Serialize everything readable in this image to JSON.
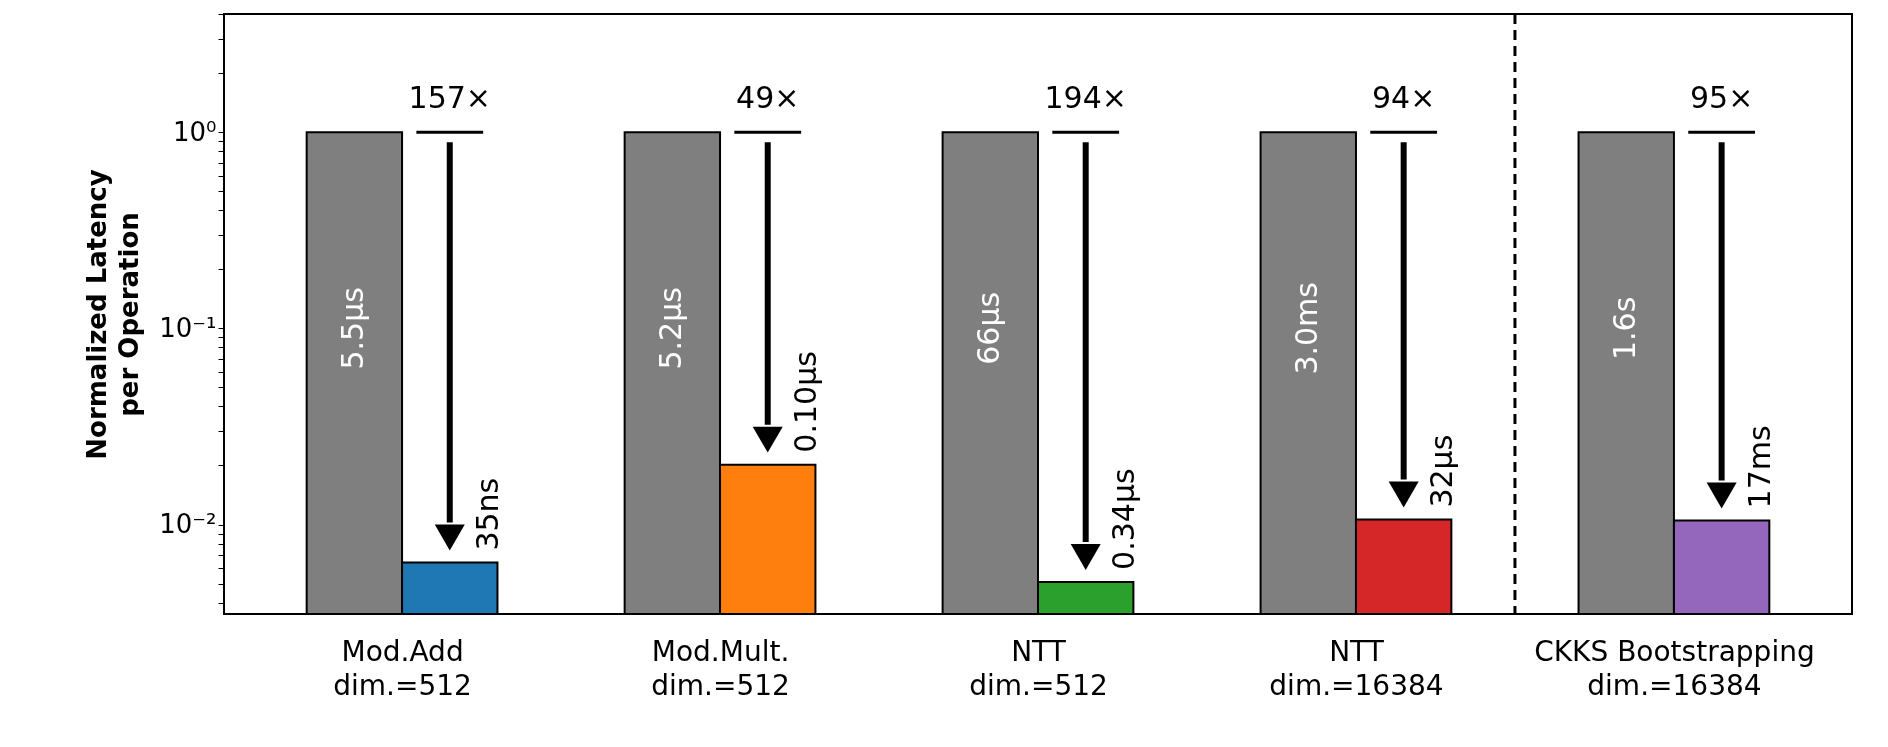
{
  "chart_data": {
    "type": "bar",
    "ylabel": "Normalized Latency\nper Operation",
    "log": "y",
    "categories": [
      "Mod.Add\ndim.=512",
      "Mod.Mult.\ndim.=512",
      "NTT\ndim.=512",
      "NTT\ndim.=16384",
      "CKKS Bootstrapping\ndim.=16384"
    ],
    "ylim": [
      0.0035,
      4
    ],
    "yticks": [
      {
        "value": 0.01,
        "label": "10⁻²"
      },
      {
        "value": 0.1,
        "label": "10⁻¹"
      },
      {
        "value": 1,
        "label": "10⁰"
      },
      {
        "value": 0.004,
        "label": null
      },
      {
        "value": 0.005,
        "label": null
      },
      {
        "value": 0.006,
        "label": null
      },
      {
        "value": 0.007,
        "label": null
      },
      {
        "value": 0.008,
        "label": null
      },
      {
        "value": 0.009,
        "label": null
      },
      {
        "value": 0.02,
        "label": null
      },
      {
        "value": 0.03,
        "label": null
      },
      {
        "value": 0.04,
        "label": null
      },
      {
        "value": 0.05,
        "label": null
      },
      {
        "value": 0.06,
        "label": null
      },
      {
        "value": 0.07,
        "label": null
      },
      {
        "value": 0.08,
        "label": null
      },
      {
        "value": 0.09,
        "label": null
      },
      {
        "value": 0.2,
        "label": null
      },
      {
        "value": 0.3,
        "label": null
      },
      {
        "value": 0.4,
        "label": null
      },
      {
        "value": 0.5,
        "label": null
      },
      {
        "value": 0.6,
        "label": null
      },
      {
        "value": 0.7,
        "label": null
      },
      {
        "value": 0.8,
        "label": null
      },
      {
        "value": 0.9,
        "label": null
      },
      {
        "value": 2,
        "label": null
      },
      {
        "value": 3,
        "label": null
      },
      {
        "value": 4,
        "label": null
      }
    ],
    "series": [
      {
        "color": "#7f7f7f",
        "values": [
          1,
          1,
          1,
          1,
          1
        ]
      },
      {
        "colors": [
          "#1f77b4",
          "#ff7f0e",
          "#2ca02c",
          "#d62728",
          "#9467bd"
        ],
        "values": [
          0.0064,
          0.0202,
          0.0051,
          0.0106,
          0.0105
        ]
      }
    ],
    "annotations": [
      {
        "text": "157×",
        "x": "Mod.Add\ndim.=512",
        "y": 1
      },
      {
        "text": "49×",
        "x": "Mod.Mult.\ndim.=512",
        "y": 1
      },
      {
        "text": "194×",
        "x": "NTT\ndim.=512",
        "y": 1
      },
      {
        "text": "94×",
        "x": "NTT\ndim.=16384",
        "y": 1
      },
      {
        "text": "95×",
        "x": "CKKS Bootstrapping\ndim.=16384",
        "y": 1
      },
      {
        "text": "5.5µs",
        "x": "Mod.Add\ndim.=512",
        "y": 0.1
      },
      {
        "text": "5.2µs",
        "x": "Mod.Mult.\ndim.=512",
        "y": 0.1
      },
      {
        "text": "66µs",
        "x": "NTT\ndim.=512",
        "y": 0.1
      },
      {
        "text": "3.0ms",
        "x": "NTT\ndim.=16384",
        "y": 0.1
      },
      {
        "text": "1.6s",
        "x": "CKKS Bootstrapping\ndim.=16384",
        "y": 0.1
      },
      {
        "text": "35ns",
        "x": "Mod.Add\ndim.=512",
        "y": 0.0064
      },
      {
        "text": "0.10µs",
        "x": "Mod.Mult.\ndim.=512",
        "y": 0.0202
      },
      {
        "text": "0.34µs",
        "x": "NTT\ndim.=512",
        "y": 0.0051
      },
      {
        "text": "32µs",
        "x": "NTT\ndim.=16384",
        "y": 0.0106
      },
      {
        "text": "17ms",
        "x": "CKKS Bootstrapping\ndim.=16384",
        "y": 0.0105
      }
    ]
  }
}
